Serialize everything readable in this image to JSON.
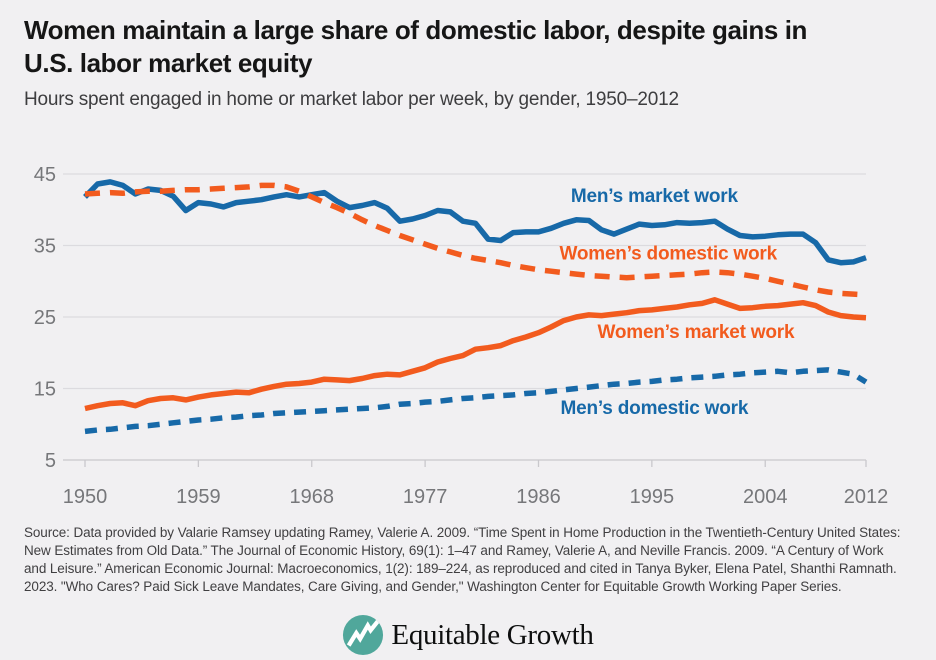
{
  "title": {
    "lines": [
      "Women maintain a large share of domestic labor, despite gains in",
      "U.S. labor market equity"
    ]
  },
  "subtitle": "Hours spent engaged in home or market labor per week, by gender, 1950–2012",
  "source": "Source: Data provided by Valarie Ramsey updating Ramey, Valerie A. 2009. “Time Spent in Home Production in the Twentieth-Century United States: New Estimates from Old Data.” The Journal of Economic History, 69(1): 1–47 and Ramey, Valerie A, and Neville Francis. 2009. “A Century of Work and Leisure.” American Economic Journal: Macroeconomics, 1(2): 189–224, as reproduced and cited in Tanya Byker, Elena Patel, Shanthi Ramnath. 2023. \"Who Cares? Paid Sick Leave Mandates, Care Giving, and Gender,\" Washington Center for Equitable Growth Working Paper Series.",
  "logo": {
    "text": "Equitable Growth",
    "icon": "zigzag-chart-line-in-circle"
  },
  "colors": {
    "background": "#F1F0F2",
    "blue": "#1769A8",
    "orange": "#F25B1E",
    "grid": "#DCDBDF",
    "axis_line": "#C9C8CC",
    "axis_text": "#76777A",
    "logo_teal": "#50A79B"
  },
  "chart_data": {
    "type": "line",
    "title": "Hours spent engaged in home or market labor per week, by gender, 1950-2012",
    "xlabel": "",
    "ylabel": "",
    "grid": true,
    "legend_position": "inline-labels",
    "xlim": [
      1950,
      2012
    ],
    "ylim": [
      5,
      46
    ],
    "xticks": [
      1950,
      1959,
      1968,
      1977,
      1986,
      1995,
      2004,
      2012
    ],
    "yticks": [
      5,
      15,
      25,
      35,
      45
    ],
    "x": [
      1950,
      1951,
      1952,
      1953,
      1954,
      1955,
      1956,
      1957,
      1958,
      1959,
      1960,
      1961,
      1962,
      1963,
      1964,
      1965,
      1966,
      1967,
      1968,
      1969,
      1970,
      1971,
      1972,
      1973,
      1974,
      1975,
      1976,
      1977,
      1978,
      1979,
      1980,
      1981,
      1982,
      1983,
      1984,
      1985,
      1986,
      1987,
      1988,
      1989,
      1990,
      1991,
      1992,
      1993,
      1994,
      1995,
      1996,
      1997,
      1998,
      1999,
      2000,
      2001,
      2002,
      2003,
      2004,
      2005,
      2006,
      2007,
      2008,
      2009,
      2010,
      2011,
      2012
    ],
    "series": [
      {
        "name": "Men’s market work",
        "color_key": "blue",
        "style": "solid",
        "dash": null,
        "label_anchor": {
          "x": 1995.2,
          "y": 41.9
        },
        "values": [
          41.8,
          43.6,
          43.9,
          43.4,
          42.2,
          42.9,
          42.7,
          41.9,
          39.9,
          41.0,
          40.8,
          40.4,
          41.0,
          41.2,
          41.4,
          41.8,
          42.1,
          41.8,
          42.1,
          42.4,
          41.2,
          40.3,
          40.6,
          41.0,
          40.2,
          38.4,
          38.7,
          39.2,
          39.9,
          39.7,
          38.4,
          38.1,
          35.9,
          35.7,
          36.8,
          36.9,
          36.9,
          37.4,
          38.1,
          38.6,
          38.5,
          37.2,
          36.6,
          37.3,
          38.0,
          37.8,
          37.9,
          38.2,
          38.1,
          38.2,
          38.4,
          37.3,
          36.4,
          36.2,
          36.3,
          36.5,
          36.6,
          36.6,
          35.4,
          33.0,
          32.6,
          32.7,
          33.3
        ]
      },
      {
        "name": "Women’s domestic work",
        "color_key": "orange",
        "style": "dashed",
        "dash": [
          15,
          10
        ],
        "label_anchor": {
          "x": 1996.3,
          "y": 33.9
        },
        "values": [
          42.2,
          42.3,
          42.4,
          42.3,
          42.5,
          42.6,
          42.6,
          42.7,
          42.8,
          42.8,
          42.9,
          43.0,
          43.1,
          43.2,
          43.4,
          43.4,
          43.2,
          42.6,
          41.8,
          41.0,
          40.3,
          39.5,
          38.6,
          37.8,
          37.1,
          36.4,
          35.8,
          35.2,
          34.6,
          34.1,
          33.6,
          33.2,
          32.9,
          32.6,
          32.2,
          31.9,
          31.6,
          31.4,
          31.2,
          31.0,
          30.8,
          30.7,
          30.6,
          30.5,
          30.6,
          30.7,
          30.8,
          30.9,
          31.0,
          31.2,
          31.3,
          31.2,
          31.0,
          30.7,
          30.4,
          30.0,
          29.6,
          29.2,
          28.8,
          28.5,
          28.3,
          28.2,
          28.1
        ]
      },
      {
        "name": "Women’s market work",
        "color_key": "orange",
        "style": "solid",
        "dash": null,
        "label_anchor": {
          "x": 1998.5,
          "y": 22.9
        },
        "values": [
          12.2,
          12.6,
          12.9,
          13.0,
          12.6,
          13.3,
          13.6,
          13.7,
          13.4,
          13.8,
          14.1,
          14.3,
          14.5,
          14.4,
          14.9,
          15.3,
          15.6,
          15.7,
          15.9,
          16.3,
          16.2,
          16.1,
          16.4,
          16.8,
          17.0,
          16.9,
          17.4,
          17.9,
          18.7,
          19.2,
          19.6,
          20.5,
          20.7,
          21.0,
          21.7,
          22.2,
          22.8,
          23.6,
          24.5,
          25.0,
          25.3,
          25.2,
          25.4,
          25.6,
          25.9,
          26.0,
          26.2,
          26.4,
          26.7,
          26.9,
          27.4,
          26.8,
          26.2,
          26.3,
          26.5,
          26.6,
          26.8,
          27.0,
          26.6,
          25.7,
          25.2,
          25.0,
          24.9
        ]
      },
      {
        "name": "Men’s domestic work",
        "color_key": "blue",
        "style": "dashed",
        "dash": [
          12,
          9
        ],
        "label_anchor": {
          "x": 1995.2,
          "y": 12.3
        },
        "values": [
          9.0,
          9.2,
          9.3,
          9.5,
          9.7,
          9.8,
          10.0,
          10.2,
          10.4,
          10.6,
          10.7,
          10.9,
          11.0,
          11.2,
          11.3,
          11.5,
          11.6,
          11.7,
          11.8,
          11.9,
          12.0,
          12.1,
          12.2,
          12.3,
          12.5,
          12.8,
          12.9,
          13.1,
          13.2,
          13.4,
          13.6,
          13.7,
          13.9,
          14.0,
          14.1,
          14.3,
          14.4,
          14.6,
          14.8,
          15.0,
          15.2,
          15.4,
          15.6,
          15.7,
          15.9,
          16.0,
          16.2,
          16.3,
          16.5,
          16.6,
          16.7,
          16.9,
          17.0,
          17.2,
          17.3,
          17.4,
          17.2,
          17.4,
          17.5,
          17.6,
          17.3,
          17.0,
          15.9
        ]
      }
    ]
  }
}
